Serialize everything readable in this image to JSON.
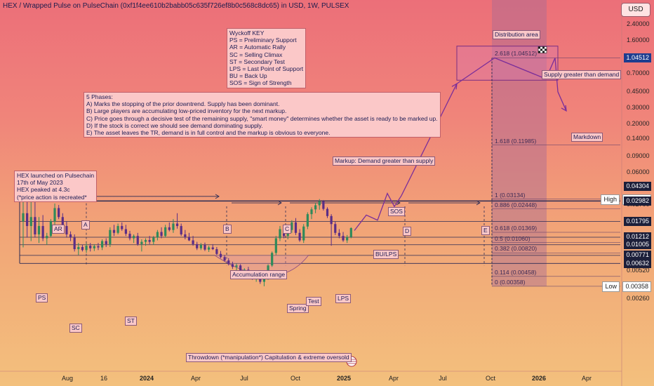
{
  "header": {
    "title": "HEX / Wrapped Pulse on PulseChain (0xf1f4ee610b2babb05c635f726ef8b0c568c8dc65) in USD, 1W, PULSEX",
    "currency_button": "USD"
  },
  "notes": {
    "wyckoff_key": "Wyckoff KEY\nPS = Preliminary Support\nAR = Automatic Rally\nSC = Selling Climax\nST = Secondary Test\nLPS = Last Point of Support\nBU = Back Up\nSOS = Sign of Strength",
    "phases": "5 Phases:\nA) Marks the stopping of the prior downtrend. Supply has been dominant.\nB) Large players are accumulating low-priced inventory for the next markup.\nC) Price goes through a decisive test of the remaining supply, \"smart money\" determines whether the asset is ready to be marked up.\nD) If the stock is correct we should see demand dominating supply.\nE) The asset leaves the TR, demand is in full control and the markup is obvious to everyone.",
    "launch": "HEX launched on Pulsechain\n17th of May 2023\nHEX peaked at 4.3c\n(*price action is recreated*"
  },
  "labels": {
    "ps": "PS",
    "ar": "AR",
    "sc": "SC",
    "st": "ST",
    "spring": "Spring",
    "test": "Test",
    "lps": "LPS",
    "bu_lps": "BU/LPS",
    "sos": "SOS",
    "accumulation": "Accumulation range",
    "throwdown": "Throwdown (*manipulation*) Capitulation & extreme oversold",
    "markup": "Markup: Demand greater than supply",
    "distribution": "Distribution area",
    "supply_gt_demand": "Supply greater than demand",
    "markdown": "Markdown",
    "phase_a": "A",
    "phase_b": "B",
    "phase_c": "C",
    "phase_d": "D",
    "phase_e": "E"
  },
  "fib_levels": [
    {
      "label": "2.618 (1.04512)",
      "value": 1.04512
    },
    {
      "label": "1.618 (0.11985)",
      "value": 0.11985
    },
    {
      "label": "1 (0.03134)",
      "value": 0.03134
    },
    {
      "label": "0.886 (0.02448)",
      "value": 0.02448
    },
    {
      "label": "0.618 (0.01369)",
      "value": 0.01369
    },
    {
      "label": "0.5 (0.01060)",
      "value": 0.0106
    },
    {
      "label": "0.382 (0.00820)",
      "value": 0.0082
    },
    {
      "label": "0.114 (0.00458)",
      "value": 0.00458
    },
    {
      "label": "0 (0.00358)",
      "value": 0.00358
    }
  ],
  "price_tags": [
    {
      "text": "1.04512",
      "value": 1.04512,
      "style": "blue"
    },
    {
      "text": "0.04304",
      "value": 0.04304,
      "style": "dark"
    },
    {
      "text": "0.03134",
      "value": 0.03134,
      "style": "light",
      "prefix": "High"
    },
    {
      "text": "0.02982",
      "value": 0.02982,
      "style": "dark"
    },
    {
      "text": "0.01795",
      "value": 0.01795,
      "style": "dark"
    },
    {
      "text": "0.01212",
      "value": 0.01212,
      "style": "dark"
    },
    {
      "text": "0.01005",
      "value": 0.01005,
      "style": "dark"
    },
    {
      "text": "0.00771",
      "value": 0.00771,
      "style": "dark"
    },
    {
      "text": "0.00632",
      "value": 0.00632,
      "style": "dark"
    },
    {
      "text": "0.00358",
      "value": 0.00358,
      "style": "light",
      "prefix": "Low"
    }
  ],
  "chart_data": {
    "type": "line",
    "title": "HEX / Wrapped Pulse on PulseChain (0xf1f4ee610b2babb05c635f726ef8b0c568c8dc65) in USD, 1W, PULSEX",
    "y_scale": "log",
    "y_ticks": [
      2.4,
      1.6,
      1.0,
      0.7,
      0.45,
      0.3,
      0.2,
      0.14,
      0.09,
      0.06,
      0.04,
      0.027,
      0.018,
      0.012,
      0.008,
      0.0052,
      0.0035,
      0.0026
    ],
    "y_tick_labels": [
      "2.40000",
      "1.60000",
      "1.00000",
      "0.70000",
      "0.45000",
      "0.30000",
      "0.20000",
      "0.14000",
      "0.09000",
      "0.06000",
      "0.04000",
      "0.02700",
      "0.01800",
      "0.01200",
      "0.00800",
      "0.00520",
      "0.00350",
      "0.00260"
    ],
    "x_tick_labels": [
      "Aug",
      "16",
      "2024",
      "Apr",
      "Jul",
      "Oct",
      "2025",
      "Apr",
      "Jul",
      "Oct",
      "2026",
      "Apr"
    ],
    "bold_x_ticks": [
      "2024",
      "2025",
      "2026"
    ],
    "high": 0.03134,
    "low": 0.00358,
    "last_price": 0.01469,
    "projection_path": [
      0.0143,
      0.021,
      0.0185,
      0.036,
      0.026,
      0.034,
      0.55,
      1.04512,
      0.62,
      1.04512,
      0.45,
      0.28
    ],
    "range_levels": [
      0.02982,
      0.01795,
      0.01212,
      0.01005,
      0.00771,
      0.00632
    ],
    "distribution_box": [
      0.6,
      1.4
    ],
    "candles": [
      {
        "o": 0.018,
        "h": 0.043,
        "l": 0.0094,
        "c": 0.022
      },
      {
        "o": 0.022,
        "h": 0.035,
        "l": 0.012,
        "c": 0.016
      },
      {
        "o": 0.016,
        "h": 0.033,
        "l": 0.011,
        "c": 0.02
      },
      {
        "o": 0.02,
        "h": 0.03,
        "l": 0.012,
        "c": 0.013
      },
      {
        "o": 0.013,
        "h": 0.02,
        "l": 0.0105,
        "c": 0.016
      },
      {
        "o": 0.016,
        "h": 0.021,
        "l": 0.011,
        "c": 0.0118
      },
      {
        "o": 0.0118,
        "h": 0.0135,
        "l": 0.01,
        "c": 0.0125
      },
      {
        "o": 0.0125,
        "h": 0.019,
        "l": 0.012,
        "c": 0.018
      },
      {
        "o": 0.018,
        "h": 0.028,
        "l": 0.016,
        "c": 0.025
      },
      {
        "o": 0.025,
        "h": 0.027,
        "l": 0.019,
        "c": 0.02
      },
      {
        "o": 0.02,
        "h": 0.022,
        "l": 0.015,
        "c": 0.016
      },
      {
        "o": 0.016,
        "h": 0.018,
        "l": 0.012,
        "c": 0.013
      },
      {
        "o": 0.013,
        "h": 0.014,
        "l": 0.011,
        "c": 0.012
      },
      {
        "o": 0.012,
        "h": 0.013,
        "l": 0.0085,
        "c": 0.009
      },
      {
        "o": 0.009,
        "h": 0.0105,
        "l": 0.0078,
        "c": 0.0095
      },
      {
        "o": 0.0095,
        "h": 0.01,
        "l": 0.0085,
        "c": 0.0088
      },
      {
        "o": 0.0088,
        "h": 0.0105,
        "l": 0.0082,
        "c": 0.0098
      },
      {
        "o": 0.0098,
        "h": 0.0105,
        "l": 0.0085,
        "c": 0.0092
      },
      {
        "o": 0.0092,
        "h": 0.0102,
        "l": 0.0086,
        "c": 0.0097
      },
      {
        "o": 0.0097,
        "h": 0.0105,
        "l": 0.0088,
        "c": 0.0094
      },
      {
        "o": 0.0094,
        "h": 0.0115,
        "l": 0.0088,
        "c": 0.011
      },
      {
        "o": 0.011,
        "h": 0.0118,
        "l": 0.0095,
        "c": 0.0102
      },
      {
        "o": 0.0102,
        "h": 0.0155,
        "l": 0.0095,
        "c": 0.0145
      },
      {
        "o": 0.0145,
        "h": 0.0165,
        "l": 0.0125,
        "c": 0.0135
      },
      {
        "o": 0.0135,
        "h": 0.017,
        "l": 0.013,
        "c": 0.016
      },
      {
        "o": 0.016,
        "h": 0.0175,
        "l": 0.0142,
        "c": 0.0148
      },
      {
        "o": 0.0148,
        "h": 0.0165,
        "l": 0.0125,
        "c": 0.0132
      },
      {
        "o": 0.0132,
        "h": 0.0142,
        "l": 0.0112,
        "c": 0.0118
      },
      {
        "o": 0.0118,
        "h": 0.013,
        "l": 0.0105,
        "c": 0.0125
      },
      {
        "o": 0.0125,
        "h": 0.0135,
        "l": 0.0098,
        "c": 0.0102
      },
      {
        "o": 0.0102,
        "h": 0.0115,
        "l": 0.0085,
        "c": 0.0108
      },
      {
        "o": 0.0108,
        "h": 0.0118,
        "l": 0.0098,
        "c": 0.0113
      },
      {
        "o": 0.0113,
        "h": 0.0125,
        "l": 0.0102,
        "c": 0.0108
      },
      {
        "o": 0.0108,
        "h": 0.0125,
        "l": 0.01,
        "c": 0.012
      },
      {
        "o": 0.012,
        "h": 0.0145,
        "l": 0.0112,
        "c": 0.0138
      },
      {
        "o": 0.0138,
        "h": 0.0155,
        "l": 0.0118,
        "c": 0.0125
      },
      {
        "o": 0.0125,
        "h": 0.0165,
        "l": 0.012,
        "c": 0.0155
      },
      {
        "o": 0.0155,
        "h": 0.0175,
        "l": 0.014,
        "c": 0.0145
      },
      {
        "o": 0.0145,
        "h": 0.019,
        "l": 0.0135,
        "c": 0.017
      },
      {
        "o": 0.017,
        "h": 0.022,
        "l": 0.015,
        "c": 0.016
      },
      {
        "o": 0.016,
        "h": 0.017,
        "l": 0.0125,
        "c": 0.013
      },
      {
        "o": 0.013,
        "h": 0.0145,
        "l": 0.0115,
        "c": 0.0122
      },
      {
        "o": 0.0122,
        "h": 0.0135,
        "l": 0.011,
        "c": 0.0112
      },
      {
        "o": 0.0112,
        "h": 0.0125,
        "l": 0.0098,
        "c": 0.0102
      },
      {
        "o": 0.0102,
        "h": 0.0108,
        "l": 0.0088,
        "c": 0.0092
      },
      {
        "o": 0.0092,
        "h": 0.0105,
        "l": 0.0088,
        "c": 0.01
      },
      {
        "o": 0.01,
        "h": 0.0106,
        "l": 0.0086,
        "c": 0.0089
      },
      {
        "o": 0.0089,
        "h": 0.0098,
        "l": 0.0084,
        "c": 0.0094
      },
      {
        "o": 0.0094,
        "h": 0.0102,
        "l": 0.0088,
        "c": 0.009
      },
      {
        "o": 0.009,
        "h": 0.0095,
        "l": 0.0078,
        "c": 0.008
      },
      {
        "o": 0.008,
        "h": 0.0086,
        "l": 0.0072,
        "c": 0.0074
      },
      {
        "o": 0.0074,
        "h": 0.0078,
        "l": 0.0066,
        "c": 0.0068
      },
      {
        "o": 0.0068,
        "h": 0.0072,
        "l": 0.006,
        "c": 0.0062
      },
      {
        "o": 0.0062,
        "h": 0.0066,
        "l": 0.0055,
        "c": 0.0058
      },
      {
        "o": 0.0058,
        "h": 0.0063,
        "l": 0.0053,
        "c": 0.006
      },
      {
        "o": 0.006,
        "h": 0.0062,
        "l": 0.0048,
        "c": 0.005
      },
      {
        "o": 0.005,
        "h": 0.0056,
        "l": 0.0046,
        "c": 0.0054
      },
      {
        "o": 0.0054,
        "h": 0.0058,
        "l": 0.0048,
        "c": 0.005
      },
      {
        "o": 0.005,
        "h": 0.0053,
        "l": 0.0042,
        "c": 0.0044
      },
      {
        "o": 0.0044,
        "h": 0.0048,
        "l": 0.004,
        "c": 0.0046
      },
      {
        "o": 0.0046,
        "h": 0.0049,
        "l": 0.0038,
        "c": 0.004
      },
      {
        "o": 0.004,
        "h": 0.0045,
        "l": 0.00358,
        "c": 0.0043
      },
      {
        "o": 0.0043,
        "h": 0.0062,
        "l": 0.0042,
        "c": 0.006
      },
      {
        "o": 0.006,
        "h": 0.0085,
        "l": 0.0058,
        "c": 0.0082
      },
      {
        "o": 0.0082,
        "h": 0.0125,
        "l": 0.0078,
        "c": 0.0118
      },
      {
        "o": 0.0118,
        "h": 0.016,
        "l": 0.011,
        "c": 0.0148
      },
      {
        "o": 0.0148,
        "h": 0.0165,
        "l": 0.0118,
        "c": 0.0125
      },
      {
        "o": 0.0125,
        "h": 0.0155,
        "l": 0.0115,
        "c": 0.0145
      },
      {
        "o": 0.0145,
        "h": 0.0185,
        "l": 0.0135,
        "c": 0.0175
      },
      {
        "o": 0.0175,
        "h": 0.0195,
        "l": 0.0128,
        "c": 0.0135
      },
      {
        "o": 0.0135,
        "h": 0.0148,
        "l": 0.0108,
        "c": 0.0112
      },
      {
        "o": 0.0112,
        "h": 0.0168,
        "l": 0.0105,
        "c": 0.0158
      },
      {
        "o": 0.0158,
        "h": 0.0225,
        "l": 0.0148,
        "c": 0.0215
      },
      {
        "o": 0.0215,
        "h": 0.0255,
        "l": 0.019,
        "c": 0.0242
      },
      {
        "o": 0.0242,
        "h": 0.0285,
        "l": 0.022,
        "c": 0.0268
      },
      {
        "o": 0.0268,
        "h": 0.0313,
        "l": 0.024,
        "c": 0.0295
      },
      {
        "o": 0.0295,
        "h": 0.0305,
        "l": 0.0235,
        "c": 0.0245
      },
      {
        "o": 0.0245,
        "h": 0.0255,
        "l": 0.0195,
        "c": 0.0205
      },
      {
        "o": 0.0205,
        "h": 0.0215,
        "l": 0.0098,
        "c": 0.0168
      },
      {
        "o": 0.0168,
        "h": 0.0178,
        "l": 0.0128,
        "c": 0.0135
      },
      {
        "o": 0.0135,
        "h": 0.0148,
        "l": 0.0118,
        "c": 0.0125
      },
      {
        "o": 0.0125,
        "h": 0.0138,
        "l": 0.0108,
        "c": 0.0112
      },
      {
        "o": 0.0112,
        "h": 0.0128,
        "l": 0.0105,
        "c": 0.0122
      },
      {
        "o": 0.0122,
        "h": 0.0155,
        "l": 0.0118,
        "c": 0.0152
      }
    ]
  }
}
